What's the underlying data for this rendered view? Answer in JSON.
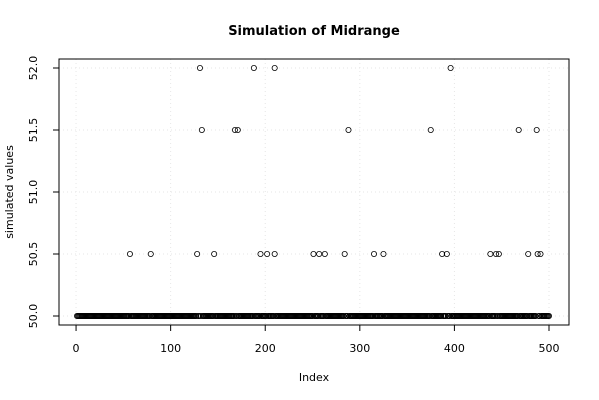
{
  "chart_data": {
    "type": "scatter",
    "title": "Simulation of Midrange",
    "xlabel": "Index",
    "ylabel": "simulated values",
    "xlim": [
      1,
      500
    ],
    "ylim": [
      50.0,
      52.0
    ],
    "x_ticks": [
      0,
      100,
      200,
      300,
      400,
      500
    ],
    "y_ticks": [
      50.0,
      50.5,
      51.0,
      51.5,
      52.0
    ],
    "x_tick_labels": [
      "0",
      "100",
      "200",
      "300",
      "400",
      "500"
    ],
    "y_tick_labels": [
      "50.0",
      "50.5",
      "51.0",
      "51.5",
      "52.0"
    ],
    "grid": true,
    "marker": "open-circle",
    "baseline_value": 50.0,
    "n_points": 500,
    "series": [
      {
        "points": [
          [
            57,
            50.5
          ],
          [
            79,
            50.5
          ],
          [
            128,
            50.5
          ],
          [
            131,
            52.0
          ],
          [
            133,
            51.5
          ],
          [
            146,
            50.5
          ],
          [
            168,
            51.5
          ],
          [
            171,
            51.5
          ],
          [
            188,
            52.0
          ],
          [
            195,
            50.5
          ],
          [
            202,
            50.5
          ],
          [
            210,
            52.0
          ],
          [
            210,
            50.5
          ],
          [
            251,
            50.5
          ],
          [
            257,
            50.5
          ],
          [
            263,
            50.5
          ],
          [
            284,
            50.5
          ],
          [
            288,
            51.5
          ],
          [
            315,
            50.5
          ],
          [
            325,
            50.5
          ],
          [
            375,
            51.5
          ],
          [
            387,
            50.5
          ],
          [
            392,
            50.5
          ],
          [
            396,
            52.0
          ],
          [
            438,
            50.5
          ],
          [
            444,
            50.5
          ],
          [
            447,
            50.5
          ],
          [
            468,
            51.5
          ],
          [
            478,
            50.5
          ],
          [
            487,
            51.5
          ],
          [
            488,
            50.5
          ],
          [
            491,
            50.5
          ]
        ]
      }
    ]
  }
}
